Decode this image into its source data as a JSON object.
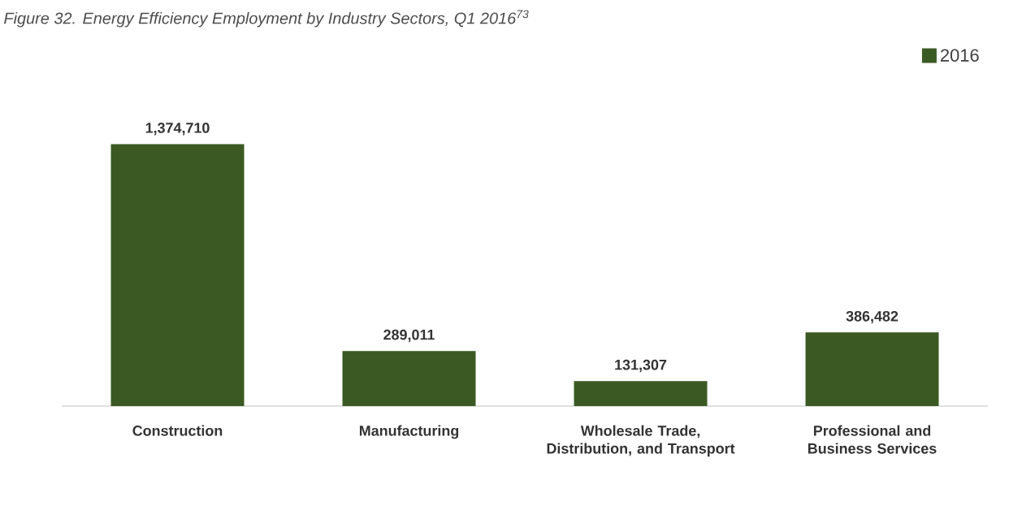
{
  "chart_data": {
    "type": "bar",
    "title": "Figure 32. Energy Efficiency Employment by Industry Sectors, Q1 2016$^{73}$",
    "categories": [
      "Construction",
      "Manufacturing",
      "Wholesale Trade, Distribution, and Transport",
      "Professional and Business Services"
    ],
    "series": [
      {
        "name": "2016",
        "color": "#3b5a23",
        "values": [
          1374710,
          289011,
          131307,
          386482
        ],
        "value_labels": [
          "1,374,710",
          "289,011",
          "131,307",
          "386,482"
        ]
      }
    ],
    "legend": "top right",
    "grid": false,
    "tick_labels": "x"
  }
}
